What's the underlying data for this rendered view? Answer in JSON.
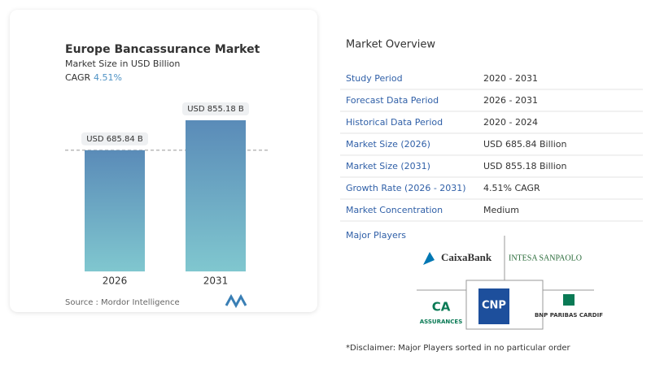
{
  "chart_data": {
    "type": "bar",
    "title": "Europe Bancassurance Market",
    "subtitle": "Market Size in USD Billion",
    "cagr_label": "CAGR",
    "cagr_value": "4.51%",
    "categories": [
      "2026",
      "2031"
    ],
    "values": [
      685.84,
      855.18
    ],
    "value_labels": [
      "USD 685.84 B",
      "USD 855.18 B"
    ],
    "source_label": "Source :",
    "source": "Mordor Intelligence"
  },
  "overview": {
    "title": "Market Overview",
    "rows": [
      [
        "Study Period",
        "2020 - 2031"
      ],
      [
        "Forecast Data Period",
        "2026 - 2031"
      ],
      [
        "Historical Data Period",
        "2020 - 2024"
      ],
      [
        "Market Size (2026)",
        "USD 685.84 Billion"
      ],
      [
        "Market Size (2031)",
        "USD 855.18 Billion"
      ],
      [
        "Growth Rate (2026 - 2031)",
        "4.51% CAGR"
      ],
      [
        "Market Concentration",
        "Medium"
      ]
    ],
    "players_title": "Major Players",
    "players": [
      "CaixaBank",
      "INTESA SANPAOLO",
      "ASSURANCES",
      "CNP",
      "BNP PARIBAS CARDIF"
    ],
    "disclaimer": "*Disclaimer: Major Players sorted in no particular order"
  }
}
